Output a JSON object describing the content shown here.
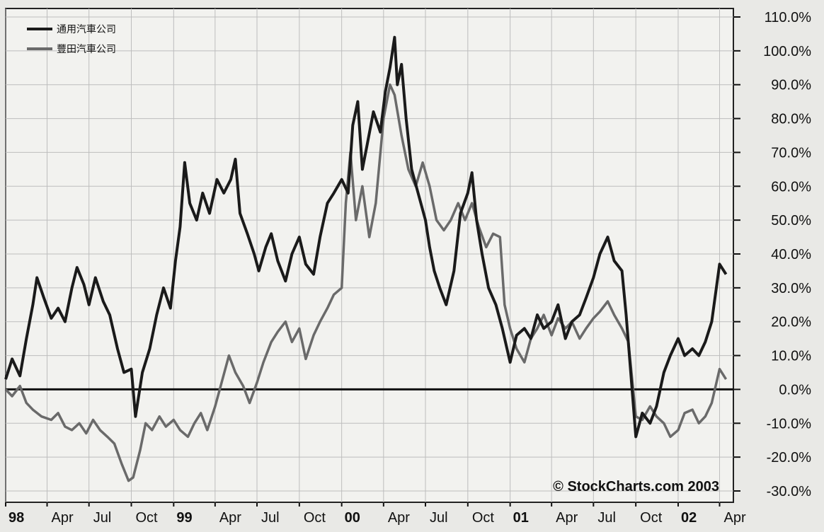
{
  "chart_data": {
    "type": "line",
    "title": "",
    "xlabel": "",
    "ylabel": "",
    "ylim": [
      -30,
      110
    ],
    "xlim": [
      "1998-01-01",
      "2002-05-01"
    ],
    "grid": true,
    "legend_position": "top-left",
    "y_ticks": [
      {
        "value": 110,
        "label": "110.0%"
      },
      {
        "value": 100,
        "label": "100.0%"
      },
      {
        "value": 90,
        "label": "90.0%"
      },
      {
        "value": 80,
        "label": "80.0%"
      },
      {
        "value": 70,
        "label": "70.0%"
      },
      {
        "value": 60,
        "label": "60.0%"
      },
      {
        "value": 50,
        "label": "50.0%"
      },
      {
        "value": 40,
        "label": "40.0%"
      },
      {
        "value": 30,
        "label": "30.0%"
      },
      {
        "value": 20,
        "label": "20.0%"
      },
      {
        "value": 10,
        "label": "10.0%"
      },
      {
        "value": 0,
        "label": "0.0%"
      },
      {
        "value": -10,
        "label": "-10.0%"
      },
      {
        "value": -20,
        "label": "-20.0%"
      },
      {
        "value": -30,
        "label": "-30.0%"
      }
    ],
    "x_ticks": [
      {
        "date": "1998-01-01",
        "label": "98",
        "year": true
      },
      {
        "date": "1998-04-01",
        "label": "Apr",
        "year": false
      },
      {
        "date": "1998-07-01",
        "label": "Jul",
        "year": false
      },
      {
        "date": "1998-10-01",
        "label": "Oct",
        "year": false
      },
      {
        "date": "1999-01-01",
        "label": "99",
        "year": true
      },
      {
        "date": "1999-04-01",
        "label": "Apr",
        "year": false
      },
      {
        "date": "1999-07-01",
        "label": "Jul",
        "year": false
      },
      {
        "date": "1999-10-01",
        "label": "Oct",
        "year": false
      },
      {
        "date": "2000-01-01",
        "label": "00",
        "year": true
      },
      {
        "date": "2000-04-01",
        "label": "Apr",
        "year": false
      },
      {
        "date": "2000-07-01",
        "label": "Jul",
        "year": false
      },
      {
        "date": "2000-10-01",
        "label": "Oct",
        "year": false
      },
      {
        "date": "2001-01-01",
        "label": "01",
        "year": true
      },
      {
        "date": "2001-04-01",
        "label": "Apr",
        "year": false
      },
      {
        "date": "2001-07-01",
        "label": "Jul",
        "year": false
      },
      {
        "date": "2001-10-01",
        "label": "Oct",
        "year": false
      },
      {
        "date": "2002-01-01",
        "label": "02",
        "year": true
      },
      {
        "date": "2002-04-01",
        "label": "Apr",
        "year": false
      }
    ],
    "reference_line": 0,
    "watermark": "© StockCharts.com 2003",
    "series": [
      {
        "name": "通用汽車公司",
        "color": "#1a1a1a",
        "points": [
          [
            "1998-01-01",
            3
          ],
          [
            "1998-01-15",
            9
          ],
          [
            "1998-02-01",
            4
          ],
          [
            "1998-02-15",
            15
          ],
          [
            "1998-03-01",
            25
          ],
          [
            "1998-03-10",
            33
          ],
          [
            "1998-03-25",
            27
          ],
          [
            "1998-04-10",
            21
          ],
          [
            "1998-04-25",
            24
          ],
          [
            "1998-05-10",
            20
          ],
          [
            "1998-05-25",
            30
          ],
          [
            "1998-06-05",
            36
          ],
          [
            "1998-06-20",
            31
          ],
          [
            "1998-07-01",
            25
          ],
          [
            "1998-07-15",
            33
          ],
          [
            "1998-08-01",
            26
          ],
          [
            "1998-08-15",
            22
          ],
          [
            "1998-09-01",
            12
          ],
          [
            "1998-09-15",
            5
          ],
          [
            "1998-10-01",
            6
          ],
          [
            "1998-10-10",
            -8
          ],
          [
            "1998-10-25",
            5
          ],
          [
            "1998-11-10",
            12
          ],
          [
            "1998-11-25",
            22
          ],
          [
            "1998-12-10",
            30
          ],
          [
            "1998-12-25",
            24
          ],
          [
            "1999-01-05",
            38
          ],
          [
            "1999-01-15",
            48
          ],
          [
            "1999-01-25",
            67
          ],
          [
            "1999-02-05",
            55
          ],
          [
            "1999-02-20",
            50
          ],
          [
            "1999-03-05",
            58
          ],
          [
            "1999-03-20",
            52
          ],
          [
            "1999-04-05",
            62
          ],
          [
            "1999-04-20",
            58
          ],
          [
            "1999-05-05",
            62
          ],
          [
            "1999-05-15",
            68
          ],
          [
            "1999-05-25",
            52
          ],
          [
            "1999-06-10",
            46
          ],
          [
            "1999-06-25",
            40
          ],
          [
            "1999-07-05",
            35
          ],
          [
            "1999-07-20",
            42
          ],
          [
            "1999-08-01",
            46
          ],
          [
            "1999-08-15",
            38
          ],
          [
            "1999-09-01",
            32
          ],
          [
            "1999-09-15",
            40
          ],
          [
            "1999-10-01",
            45
          ],
          [
            "1999-10-15",
            37
          ],
          [
            "1999-11-01",
            34
          ],
          [
            "1999-11-15",
            45
          ],
          [
            "1999-12-01",
            55
          ],
          [
            "1999-12-15",
            58
          ],
          [
            "2000-01-01",
            62
          ],
          [
            "2000-01-15",
            58
          ],
          [
            "2000-01-25",
            78
          ],
          [
            "2000-02-05",
            85
          ],
          [
            "2000-02-15",
            65
          ],
          [
            "2000-02-25",
            72
          ],
          [
            "2000-03-10",
            82
          ],
          [
            "2000-03-25",
            76
          ],
          [
            "2000-04-05",
            88
          ],
          [
            "2000-04-15",
            95
          ],
          [
            "2000-04-25",
            104
          ],
          [
            "2000-05-01",
            90
          ],
          [
            "2000-05-10",
            96
          ],
          [
            "2000-05-20",
            80
          ],
          [
            "2000-06-01",
            65
          ],
          [
            "2000-06-15",
            58
          ],
          [
            "2000-07-01",
            50
          ],
          [
            "2000-07-10",
            42
          ],
          [
            "2000-07-20",
            35
          ],
          [
            "2000-08-01",
            30
          ],
          [
            "2000-08-15",
            25
          ],
          [
            "2000-09-01",
            35
          ],
          [
            "2000-09-15",
            52
          ],
          [
            "2000-10-01",
            58
          ],
          [
            "2000-10-10",
            64
          ],
          [
            "2000-10-20",
            50
          ],
          [
            "2000-11-01",
            40
          ],
          [
            "2000-11-15",
            30
          ],
          [
            "2000-12-01",
            25
          ],
          [
            "2000-12-15",
            18
          ],
          [
            "2001-01-01",
            8
          ],
          [
            "2001-01-15",
            16
          ],
          [
            "2001-02-01",
            18
          ],
          [
            "2001-02-15",
            15
          ],
          [
            "2001-03-01",
            22
          ],
          [
            "2001-03-15",
            18
          ],
          [
            "2001-04-01",
            20
          ],
          [
            "2001-04-15",
            25
          ],
          [
            "2001-05-01",
            15
          ],
          [
            "2001-05-15",
            20
          ],
          [
            "2001-06-01",
            22
          ],
          [
            "2001-06-15",
            27
          ],
          [
            "2001-07-01",
            33
          ],
          [
            "2001-07-15",
            40
          ],
          [
            "2001-08-01",
            45
          ],
          [
            "2001-08-15",
            38
          ],
          [
            "2001-09-01",
            35
          ],
          [
            "2001-09-10",
            22
          ],
          [
            "2001-09-20",
            5
          ],
          [
            "2001-10-01",
            -14
          ],
          [
            "2001-10-15",
            -7
          ],
          [
            "2001-11-01",
            -10
          ],
          [
            "2001-11-15",
            -5
          ],
          [
            "2001-12-01",
            5
          ],
          [
            "2001-12-15",
            10
          ],
          [
            "2002-01-01",
            15
          ],
          [
            "2002-01-15",
            10
          ],
          [
            "2002-02-01",
            12
          ],
          [
            "2002-02-15",
            10
          ],
          [
            "2002-03-01",
            14
          ],
          [
            "2002-03-15",
            20
          ],
          [
            "2002-04-01",
            37
          ],
          [
            "2002-04-15",
            34
          ]
        ]
      },
      {
        "name": "豐田汽車公司",
        "color": "#6a6a6a",
        "points": [
          [
            "1998-01-01",
            0
          ],
          [
            "1998-01-15",
            -2
          ],
          [
            "1998-02-01",
            1
          ],
          [
            "1998-02-15",
            -4
          ],
          [
            "1998-03-01",
            -6
          ],
          [
            "1998-03-20",
            -8
          ],
          [
            "1998-04-10",
            -9
          ],
          [
            "1998-04-25",
            -7
          ],
          [
            "1998-05-10",
            -11
          ],
          [
            "1998-05-25",
            -12
          ],
          [
            "1998-06-10",
            -10
          ],
          [
            "1998-06-25",
            -13
          ],
          [
            "1998-07-10",
            -9
          ],
          [
            "1998-07-25",
            -12
          ],
          [
            "1998-08-10",
            -14
          ],
          [
            "1998-08-25",
            -16
          ],
          [
            "1998-09-10",
            -22
          ],
          [
            "1998-09-25",
            -27
          ],
          [
            "1998-10-05",
            -26
          ],
          [
            "1998-10-20",
            -18
          ],
          [
            "1998-11-01",
            -10
          ],
          [
            "1998-11-15",
            -12
          ],
          [
            "1998-12-01",
            -8
          ],
          [
            "1998-12-15",
            -11
          ],
          [
            "1999-01-01",
            -9
          ],
          [
            "1999-01-15",
            -12
          ],
          [
            "1999-02-01",
            -14
          ],
          [
            "1999-02-15",
            -10
          ],
          [
            "1999-03-01",
            -7
          ],
          [
            "1999-03-15",
            -12
          ],
          [
            "1999-04-01",
            -5
          ],
          [
            "1999-04-15",
            2
          ],
          [
            "1999-05-01",
            10
          ],
          [
            "1999-05-15",
            5
          ],
          [
            "1999-06-01",
            1
          ],
          [
            "1999-06-15",
            -4
          ],
          [
            "1999-07-01",
            2
          ],
          [
            "1999-07-15",
            8
          ],
          [
            "1999-08-01",
            14
          ],
          [
            "1999-08-15",
            17
          ],
          [
            "1999-09-01",
            20
          ],
          [
            "1999-09-15",
            14
          ],
          [
            "1999-10-01",
            18
          ],
          [
            "1999-10-15",
            9
          ],
          [
            "1999-11-01",
            16
          ],
          [
            "1999-11-15",
            20
          ],
          [
            "1999-12-01",
            24
          ],
          [
            "1999-12-15",
            28
          ],
          [
            "2000-01-01",
            30
          ],
          [
            "2000-01-10",
            55
          ],
          [
            "2000-01-20",
            70
          ],
          [
            "2000-02-01",
            50
          ],
          [
            "2000-02-15",
            60
          ],
          [
            "2000-03-01",
            45
          ],
          [
            "2000-03-15",
            55
          ],
          [
            "2000-04-01",
            80
          ],
          [
            "2000-04-15",
            90
          ],
          [
            "2000-04-25",
            87
          ],
          [
            "2000-05-10",
            75
          ],
          [
            "2000-05-25",
            65
          ],
          [
            "2000-06-10",
            60
          ],
          [
            "2000-06-25",
            67
          ],
          [
            "2000-07-10",
            60
          ],
          [
            "2000-07-25",
            50
          ],
          [
            "2000-08-10",
            47
          ],
          [
            "2000-08-25",
            50
          ],
          [
            "2000-09-10",
            55
          ],
          [
            "2000-09-25",
            50
          ],
          [
            "2000-10-10",
            55
          ],
          [
            "2000-10-25",
            48
          ],
          [
            "2000-11-10",
            42
          ],
          [
            "2000-11-25",
            46
          ],
          [
            "2000-12-10",
            45
          ],
          [
            "2000-12-20",
            25
          ],
          [
            "2001-01-01",
            18
          ],
          [
            "2001-01-15",
            12
          ],
          [
            "2001-02-01",
            8
          ],
          [
            "2001-02-15",
            15
          ],
          [
            "2001-03-01",
            18
          ],
          [
            "2001-03-15",
            22
          ],
          [
            "2001-04-01",
            16
          ],
          [
            "2001-04-15",
            21
          ],
          [
            "2001-05-01",
            18
          ],
          [
            "2001-05-15",
            20
          ],
          [
            "2001-06-01",
            15
          ],
          [
            "2001-06-15",
            18
          ],
          [
            "2001-07-01",
            21
          ],
          [
            "2001-07-15",
            23
          ],
          [
            "2001-08-01",
            26
          ],
          [
            "2001-08-15",
            22
          ],
          [
            "2001-09-01",
            18
          ],
          [
            "2001-09-15",
            14
          ],
          [
            "2001-10-01",
            -8
          ],
          [
            "2001-10-15",
            -9
          ],
          [
            "2001-11-01",
            -5
          ],
          [
            "2001-11-15",
            -8
          ],
          [
            "2001-12-01",
            -10
          ],
          [
            "2001-12-15",
            -14
          ],
          [
            "2002-01-01",
            -12
          ],
          [
            "2002-01-15",
            -7
          ],
          [
            "2002-02-01",
            -6
          ],
          [
            "2002-02-15",
            -10
          ],
          [
            "2002-03-01",
            -8
          ],
          [
            "2002-03-15",
            -4
          ],
          [
            "2002-04-01",
            6
          ],
          [
            "2002-04-15",
            3
          ]
        ]
      }
    ]
  }
}
